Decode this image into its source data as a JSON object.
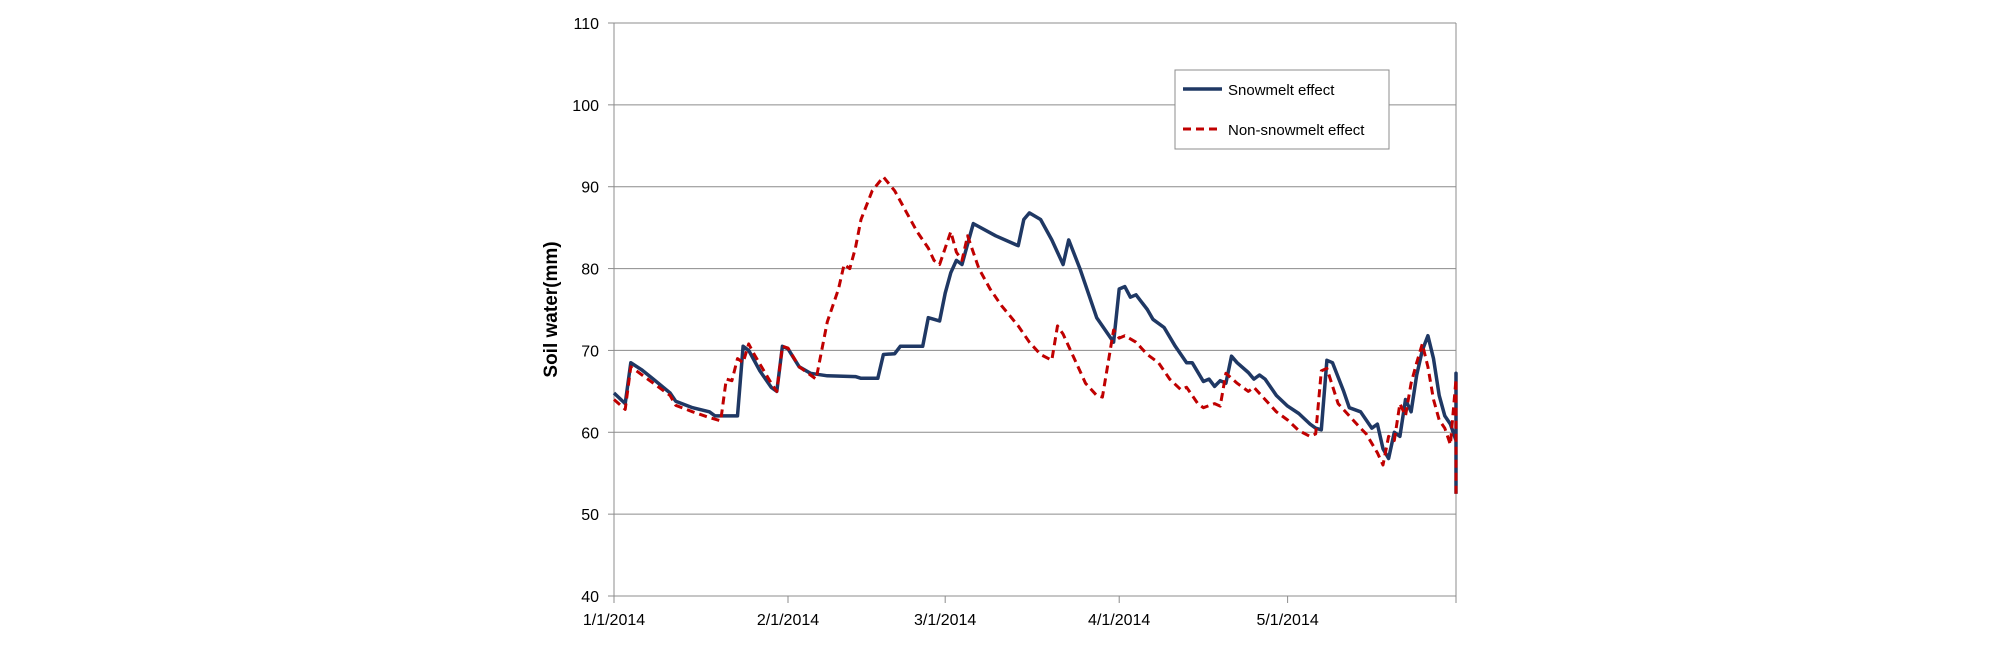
{
  "chart_data": {
    "type": "line",
    "title": "",
    "xlabel": "",
    "ylabel": "Soil water(mm)",
    "ylim": [
      40,
      110
    ],
    "yticks": [
      40,
      50,
      60,
      70,
      80,
      90,
      100,
      110
    ],
    "xlim": [
      "2014-01-01",
      "2014-05-31"
    ],
    "xticks": [
      {
        "date": "2014-01-01",
        "label": "1/1/2014"
      },
      {
        "date": "2014-02-01",
        "label": "2/1/2014"
      },
      {
        "date": "2014-03-01",
        "label": "3/1/2014"
      },
      {
        "date": "2014-04-01",
        "label": "4/1/2014"
      },
      {
        "date": "2014-05-01",
        "label": "5/1/2014"
      }
    ],
    "grid": "horizontal",
    "legend_position": "top-right",
    "series": [
      {
        "name": "Snowmelt effect",
        "color": "#1f3864",
        "style": "solid",
        "points": [
          [
            "2014-01-01",
            64.8
          ],
          [
            "2014-01-03",
            63.5
          ],
          [
            "2014-01-04",
            68.5
          ],
          [
            "2014-01-06",
            67.6
          ],
          [
            "2014-01-08",
            66.5
          ],
          [
            "2014-01-11",
            64.8
          ],
          [
            "2014-01-12",
            63.8
          ],
          [
            "2014-01-15",
            63.0
          ],
          [
            "2014-01-18",
            62.5
          ],
          [
            "2014-01-19",
            62.0
          ],
          [
            "2014-01-23",
            62.0
          ],
          [
            "2014-01-24",
            70.5
          ],
          [
            "2014-01-25",
            70.0
          ],
          [
            "2014-01-27",
            67.5
          ],
          [
            "2014-01-29",
            65.5
          ],
          [
            "2014-01-30",
            65.0
          ],
          [
            "2014-01-31",
            70.5
          ],
          [
            "2014-02-01",
            70.2
          ],
          [
            "2014-02-03",
            68.0
          ],
          [
            "2014-02-05",
            67.2
          ],
          [
            "2014-02-08",
            66.9
          ],
          [
            "2014-02-13",
            66.8
          ],
          [
            "2014-02-14",
            66.6
          ],
          [
            "2014-02-17",
            66.6
          ],
          [
            "2014-02-18",
            69.5
          ],
          [
            "2014-02-20",
            69.6
          ],
          [
            "2014-02-21",
            70.5
          ],
          [
            "2014-02-25",
            70.5
          ],
          [
            "2014-02-26",
            74.0
          ],
          [
            "2014-02-27",
            73.8
          ],
          [
            "2014-02-28",
            73.6
          ],
          [
            "2014-03-01",
            77.0
          ],
          [
            "2014-03-02",
            79.5
          ],
          [
            "2014-03-03",
            81.0
          ],
          [
            "2014-03-04",
            80.5
          ],
          [
            "2014-03-05",
            83.0
          ],
          [
            "2014-03-06",
            85.5
          ],
          [
            "2014-03-10",
            84.0
          ],
          [
            "2014-03-14",
            82.8
          ],
          [
            "2014-03-15",
            86.0
          ],
          [
            "2014-03-16",
            86.8
          ],
          [
            "2014-03-18",
            86.0
          ],
          [
            "2014-03-20",
            83.5
          ],
          [
            "2014-03-22",
            80.5
          ],
          [
            "2014-03-23",
            83.5
          ],
          [
            "2014-03-25",
            80.0
          ],
          [
            "2014-03-28",
            74.0
          ],
          [
            "2014-03-30",
            72.0
          ],
          [
            "2014-03-31",
            71.0
          ],
          [
            "2014-04-01",
            77.5
          ],
          [
            "2014-04-02",
            77.8
          ],
          [
            "2014-04-03",
            76.5
          ],
          [
            "2014-04-04",
            76.8
          ],
          [
            "2014-04-06",
            75.0
          ],
          [
            "2014-04-07",
            73.8
          ],
          [
            "2014-04-09",
            72.8
          ],
          [
            "2014-04-11",
            70.5
          ],
          [
            "2014-04-13",
            68.5
          ],
          [
            "2014-04-14",
            68.5
          ],
          [
            "2014-04-16",
            66.2
          ],
          [
            "2014-04-17",
            66.5
          ],
          [
            "2014-04-18",
            65.6
          ],
          [
            "2014-04-19",
            66.3
          ],
          [
            "2014-04-20",
            66.0
          ],
          [
            "2014-04-21",
            69.3
          ],
          [
            "2014-04-22",
            68.5
          ],
          [
            "2014-04-24",
            67.3
          ],
          [
            "2014-04-25",
            66.5
          ],
          [
            "2014-04-26",
            67.0
          ],
          [
            "2014-04-27",
            66.5
          ],
          [
            "2014-04-29",
            64.5
          ],
          [
            "2014-05-01",
            63.2
          ],
          [
            "2014-05-03",
            62.3
          ],
          [
            "2014-05-05",
            61.0
          ],
          [
            "2014-05-06",
            60.5
          ],
          [
            "2014-05-07",
            60.3
          ],
          [
            "2014-05-08",
            68.8
          ],
          [
            "2014-05-09",
            68.5
          ],
          [
            "2014-05-11",
            65.0
          ],
          [
            "2014-05-12",
            63.0
          ],
          [
            "2014-05-14",
            62.5
          ],
          [
            "2014-05-15",
            61.5
          ],
          [
            "2014-05-16",
            60.5
          ],
          [
            "2014-05-17",
            61.0
          ],
          [
            "2014-05-18",
            58.0
          ],
          [
            "2014-05-19",
            56.8
          ],
          [
            "2014-05-20",
            60.0
          ],
          [
            "2014-05-21",
            59.5
          ],
          [
            "2014-05-22",
            64.0
          ],
          [
            "2014-05-23",
            62.5
          ],
          [
            "2014-05-24",
            67.0
          ],
          [
            "2014-05-25",
            70.0
          ],
          [
            "2014-05-26",
            71.8
          ],
          [
            "2014-05-27",
            69.0
          ],
          [
            "2014-05-28",
            64.5
          ],
          [
            "2014-05-29",
            62.0
          ],
          [
            "2014-05-30",
            61.0
          ],
          [
            "2014-05-31",
            59.0
          ],
          [
            "2014-06-01",
            67.2
          ],
          [
            "2014-06-02",
            65.5
          ],
          [
            "2014-06-03",
            64.8
          ],
          [
            "2014-06-04",
            64.0
          ],
          [
            "2014-06-05",
            61.5
          ],
          [
            "2014-06-06",
            57.5
          ],
          [
            "2014-06-07",
            54.5
          ],
          [
            "2014-06-08",
            52.5
          ]
        ]
      },
      {
        "name": "Non-snowmelt effect",
        "color": "#c00000",
        "style": "dashed",
        "points": [
          [
            "2014-01-01",
            64.0
          ],
          [
            "2014-01-03",
            62.8
          ],
          [
            "2014-01-04",
            68.0
          ],
          [
            "2014-01-06",
            67.0
          ],
          [
            "2014-01-08",
            66.0
          ],
          [
            "2014-01-11",
            64.5
          ],
          [
            "2014-01-12",
            63.3
          ],
          [
            "2014-01-15",
            62.5
          ],
          [
            "2014-01-18",
            61.8
          ],
          [
            "2014-01-20",
            61.4
          ],
          [
            "2014-01-21",
            66.5
          ],
          [
            "2014-01-22",
            66.3
          ],
          [
            "2014-01-23",
            69.0
          ],
          [
            "2014-01-24",
            68.5
          ],
          [
            "2014-01-25",
            70.8
          ],
          [
            "2014-01-26",
            69.5
          ],
          [
            "2014-01-29",
            66.0
          ],
          [
            "2014-01-30",
            65.0
          ],
          [
            "2014-01-31",
            70.5
          ],
          [
            "2014-02-01",
            70.3
          ],
          [
            "2014-02-03",
            68.0
          ],
          [
            "2014-02-06",
            66.5
          ],
          [
            "2014-02-08",
            73.5
          ],
          [
            "2014-02-10",
            77.5
          ],
          [
            "2014-02-11",
            80.5
          ],
          [
            "2014-02-12",
            80.0
          ],
          [
            "2014-02-13",
            82.5
          ],
          [
            "2014-02-14",
            86.0
          ],
          [
            "2014-02-16",
            89.5
          ],
          [
            "2014-02-18",
            91.2
          ],
          [
            "2014-02-20",
            89.5
          ],
          [
            "2014-02-22",
            87.0
          ],
          [
            "2014-02-24",
            84.5
          ],
          [
            "2014-02-26",
            82.5
          ],
          [
            "2014-02-27",
            81.0
          ],
          [
            "2014-02-28",
            80.5
          ],
          [
            "2014-03-02",
            84.5
          ],
          [
            "2014-03-03",
            82.0
          ],
          [
            "2014-03-04",
            81.0
          ],
          [
            "2014-03-05",
            84.0
          ],
          [
            "2014-03-07",
            80.0
          ],
          [
            "2014-03-09",
            77.5
          ],
          [
            "2014-03-11",
            75.5
          ],
          [
            "2014-03-14",
            73.0
          ],
          [
            "2014-03-16",
            71.0
          ],
          [
            "2014-03-18",
            69.5
          ],
          [
            "2014-03-20",
            68.8
          ],
          [
            "2014-03-21",
            73.0
          ],
          [
            "2014-03-22",
            72.0
          ],
          [
            "2014-03-24",
            69.0
          ],
          [
            "2014-03-26",
            66.0
          ],
          [
            "2014-03-28",
            64.5
          ],
          [
            "2014-03-29",
            64.3
          ],
          [
            "2014-03-31",
            72.5
          ],
          [
            "2014-04-01",
            71.5
          ],
          [
            "2014-04-02",
            71.8
          ],
          [
            "2014-04-04",
            71.0
          ],
          [
            "2014-04-06",
            69.5
          ],
          [
            "2014-04-08",
            68.5
          ],
          [
            "2014-04-10",
            66.5
          ],
          [
            "2014-04-12",
            65.2
          ],
          [
            "2014-04-13",
            65.5
          ],
          [
            "2014-04-15",
            63.5
          ],
          [
            "2014-04-16",
            63.0
          ],
          [
            "2014-04-18",
            63.5
          ],
          [
            "2014-04-19",
            63.2
          ],
          [
            "2014-04-20",
            67.2
          ],
          [
            "2014-04-22",
            66.0
          ],
          [
            "2014-04-24",
            65.0
          ],
          [
            "2014-04-25",
            65.5
          ],
          [
            "2014-04-27",
            64.0
          ],
          [
            "2014-04-29",
            62.5
          ],
          [
            "2014-05-01",
            61.5
          ],
          [
            "2014-05-03",
            60.2
          ],
          [
            "2014-05-05",
            59.5
          ],
          [
            "2014-05-06",
            59.8
          ],
          [
            "2014-05-07",
            67.5
          ],
          [
            "2014-05-08",
            67.8
          ],
          [
            "2014-05-10",
            63.5
          ],
          [
            "2014-05-12",
            62.0
          ],
          [
            "2014-05-14",
            60.5
          ],
          [
            "2014-05-15",
            59.8
          ],
          [
            "2014-05-17",
            57.5
          ],
          [
            "2014-05-18",
            56.0
          ],
          [
            "2014-05-19",
            59.5
          ],
          [
            "2014-05-20",
            59.0
          ],
          [
            "2014-05-21",
            63.5
          ],
          [
            "2014-05-22",
            62.0
          ],
          [
            "2014-05-23",
            66.0
          ],
          [
            "2014-05-24",
            68.5
          ],
          [
            "2014-05-25",
            70.8
          ],
          [
            "2014-05-26",
            68.0
          ],
          [
            "2014-05-27",
            64.0
          ],
          [
            "2014-05-28",
            61.5
          ],
          [
            "2014-05-29",
            60.5
          ],
          [
            "2014-05-30",
            58.5
          ],
          [
            "2014-05-31",
            66.5
          ],
          [
            "2014-06-01",
            65.0
          ],
          [
            "2014-06-02",
            64.5
          ],
          [
            "2014-06-03",
            63.5
          ],
          [
            "2014-06-04",
            61.0
          ],
          [
            "2014-06-05",
            57.5
          ],
          [
            "2014-06-06",
            54.0
          ],
          [
            "2014-06-07",
            52.0
          ]
        ]
      }
    ]
  }
}
